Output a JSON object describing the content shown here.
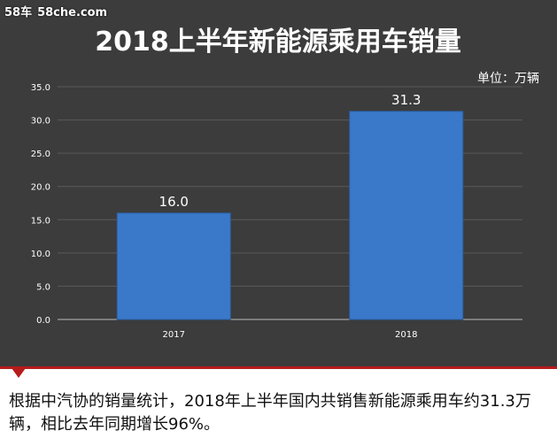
{
  "watermark": {
    "brand": "58车",
    "site": "58che.com"
  },
  "caption": "根据中汽协的销量统计，2018年上半年国内共销售新能源乘用车约31.3万辆，相比去年同期增长96%。",
  "colors": {
    "bar": "#3a78c9",
    "bar_edge": "#2a5fa6",
    "panel": "#3c3c3c",
    "accent": "#b71c1c"
  },
  "icons": {
    "caption_marker": "red-triangle-icon"
  },
  "chart_data": {
    "type": "bar",
    "title": "2018上半年新能源乘用车销量",
    "unit_label": "单位：万辆",
    "categories": [
      "2017",
      "2018"
    ],
    "values": [
      16.0,
      31.3
    ],
    "value_labels": [
      "16.0",
      "31.3"
    ],
    "ylim": [
      0,
      35
    ],
    "yticks": [
      "0.0",
      "5.0",
      "10.0",
      "15.0",
      "20.0",
      "25.0",
      "30.0",
      "35.0"
    ],
    "xlabel": "",
    "ylabel": "",
    "grid": true,
    "legend": "none"
  }
}
